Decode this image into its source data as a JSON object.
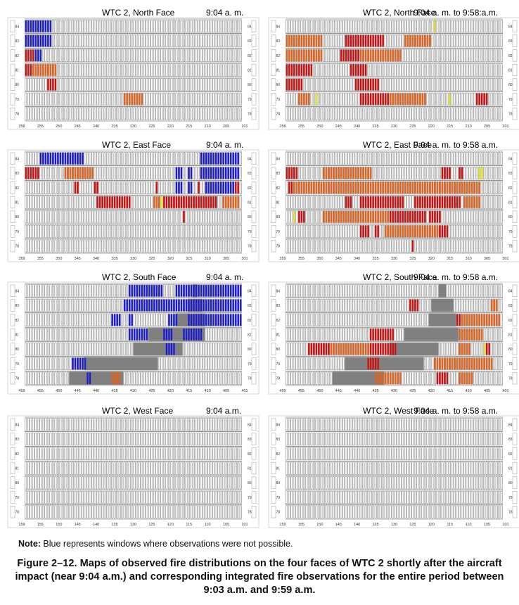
{
  "panels": [
    {
      "id": "north-904",
      "title": "WTC 2, North Face",
      "time": "9:04 a. m.",
      "floors": [
        "84",
        "83",
        "82",
        "81",
        "80",
        "79",
        "78"
      ],
      "columns": [
        "258",
        "255",
        "250",
        "245",
        "240",
        "235",
        "230",
        "225",
        "220",
        "215",
        "210",
        "205",
        "201"
      ],
      "runs": [
        [
          0,
          0,
          11,
          "blue"
        ],
        [
          1,
          0,
          11,
          "blue"
        ],
        [
          2,
          0,
          4,
          "red"
        ],
        [
          2,
          4,
          7,
          "blue"
        ],
        [
          3,
          0,
          3,
          "red"
        ],
        [
          3,
          3,
          13,
          "orange"
        ],
        [
          4,
          9,
          13,
          "red"
        ],
        [
          5,
          40,
          48,
          "orange"
        ]
      ]
    },
    {
      "id": "north-958",
      "title": "WTC 2, North Face",
      "time": "9:04 a. m. to 9:58:a.m.",
      "floors": [
        "84",
        "83",
        "82",
        "81",
        "80",
        "79",
        "78"
      ],
      "columns": [
        "258",
        "255",
        "250",
        "245",
        "240",
        "235",
        "230",
        "225",
        "220",
        "215",
        "210",
        "205",
        "201"
      ],
      "runs": [
        [
          0,
          60,
          61,
          "yellow"
        ],
        [
          1,
          0,
          15,
          "orange"
        ],
        [
          1,
          24,
          40,
          "red"
        ],
        [
          1,
          48,
          59,
          "orange"
        ],
        [
          2,
          0,
          15,
          "orange"
        ],
        [
          2,
          22,
          30,
          "red"
        ],
        [
          2,
          30,
          47,
          "orange"
        ],
        [
          3,
          0,
          11,
          "red"
        ],
        [
          3,
          26,
          33,
          "red"
        ],
        [
          4,
          0,
          7,
          "red"
        ],
        [
          4,
          28,
          38,
          "red"
        ],
        [
          5,
          5,
          10,
          "orange"
        ],
        [
          5,
          12,
          13,
          "yellow"
        ],
        [
          5,
          30,
          42,
          "red"
        ],
        [
          5,
          42,
          57,
          "orange"
        ],
        [
          5,
          66,
          67,
          "yellow"
        ],
        [
          5,
          77,
          82,
          "red"
        ]
      ]
    },
    {
      "id": "east-904",
      "title": "WTC 2, East Face",
      "time": "9:04 a. m.",
      "floors": [
        "84",
        "83",
        "82",
        "81",
        "80",
        "79",
        "78"
      ],
      "columns": [
        "359",
        "355",
        "350",
        "345",
        "340",
        "335",
        "330",
        "325",
        "320",
        "315",
        "310",
        "305",
        "301"
      ],
      "runs": [
        [
          0,
          6,
          24,
          "blue"
        ],
        [
          0,
          71,
          87,
          "blue"
        ],
        [
          1,
          0,
          6,
          "red"
        ],
        [
          1,
          16,
          28,
          "orange"
        ],
        [
          1,
          61,
          64,
          "blue"
        ],
        [
          1,
          66,
          68,
          "blue"
        ],
        [
          1,
          71,
          87,
          "blue"
        ],
        [
          2,
          20,
          22,
          "red"
        ],
        [
          2,
          28,
          30,
          "red"
        ],
        [
          2,
          53,
          54,
          "red"
        ],
        [
          2,
          61,
          64,
          "blue"
        ],
        [
          2,
          66,
          68,
          "blue"
        ],
        [
          2,
          70,
          71,
          "red"
        ],
        [
          2,
          73,
          85,
          "blue"
        ],
        [
          2,
          85,
          87,
          "red"
        ],
        [
          3,
          29,
          43,
          "red"
        ],
        [
          3,
          52,
          55,
          "orange"
        ],
        [
          3,
          55,
          56,
          "yellow"
        ],
        [
          3,
          56,
          67,
          "red"
        ],
        [
          3,
          67,
          78,
          "red"
        ],
        [
          3,
          80,
          87,
          "orange"
        ],
        [
          4,
          64,
          65,
          "red"
        ]
      ]
    },
    {
      "id": "east-958",
      "title": "WTC 2, East Face",
      "time": "9:04 a. m. to 9:58 a.m.",
      "floors": [
        "84",
        "83",
        "82",
        "81",
        "80",
        "79",
        "78"
      ],
      "columns": [
        "359",
        "355",
        "350",
        "345",
        "340",
        "335",
        "330",
        "325",
        "320",
        "315",
        "310",
        "305",
        "301"
      ],
      "runs": [
        [
          1,
          0,
          5,
          "red"
        ],
        [
          1,
          15,
          35,
          "orange"
        ],
        [
          1,
          63,
          67,
          "red"
        ],
        [
          1,
          70,
          72,
          "red"
        ],
        [
          1,
          78,
          80,
          "yellow"
        ],
        [
          2,
          1,
          3,
          "red"
        ],
        [
          2,
          3,
          79,
          "orange"
        ],
        [
          3,
          24,
          27,
          "red"
        ],
        [
          3,
          30,
          48,
          "red"
        ],
        [
          3,
          52,
          71,
          "red"
        ],
        [
          3,
          72,
          79,
          "orange"
        ],
        [
          4,
          3,
          4,
          "yellow"
        ],
        [
          4,
          5,
          8,
          "red"
        ],
        [
          4,
          15,
          42,
          "orange"
        ],
        [
          4,
          42,
          57,
          "red"
        ],
        [
          4,
          58,
          63,
          "red"
        ],
        [
          5,
          30,
          34,
          "red"
        ],
        [
          5,
          36,
          38,
          "red"
        ],
        [
          5,
          40,
          62,
          "orange"
        ],
        [
          5,
          62,
          66,
          "red"
        ],
        [
          6,
          51,
          52,
          "red"
        ]
      ]
    },
    {
      "id": "south-904",
      "title": "WTC 2, South Face",
      "time": "9:04 a. m.",
      "floors": [
        "84",
        "83",
        "82",
        "81",
        "80",
        "79",
        "78"
      ],
      "columns": [
        "459",
        "455",
        "450",
        "445",
        "440",
        "435",
        "430",
        "425",
        "420",
        "415",
        "410",
        "405",
        "401"
      ],
      "runs": [
        [
          0,
          42,
          56,
          "blue"
        ],
        [
          0,
          61,
          88,
          "blue"
        ],
        [
          1,
          40,
          88,
          "blue"
        ],
        [
          2,
          35,
          39,
          "blue"
        ],
        [
          2,
          42,
          44,
          "blue"
        ],
        [
          2,
          58,
          62,
          "blue"
        ],
        [
          2,
          66,
          88,
          "blue"
        ],
        [
          3,
          42,
          50,
          "blue"
        ],
        [
          3,
          56,
          60,
          "blue"
        ],
        [
          3,
          64,
          72,
          "blue"
        ],
        [
          4,
          57,
          61,
          "blue"
        ],
        [
          5,
          19,
          25,
          "blue"
        ],
        [
          6,
          25,
          27,
          "blue"
        ],
        [
          6,
          35,
          39,
          "orange"
        ]
      ],
      "gray": [
        [
          0,
          68,
          70
        ],
        [
          1,
          66,
          72
        ],
        [
          2,
          61,
          73
        ],
        [
          3,
          50,
          73
        ],
        [
          4,
          44,
          64
        ],
        [
          5,
          24,
          54
        ],
        [
          6,
          18,
          40
        ]
      ]
    },
    {
      "id": "south-958",
      "title": "WTC 2, South Face",
      "time": "9:04 a. m. to 9:58 a.m.",
      "floors": [
        "84",
        "83",
        "82",
        "81",
        "80",
        "79",
        "78"
      ],
      "columns": [
        "459",
        "455",
        "450",
        "445",
        "440",
        "435",
        "430",
        "425",
        "420",
        "415",
        "410",
        "405",
        "401"
      ],
      "runs": [
        [
          1,
          50,
          54,
          "red"
        ],
        [
          1,
          83,
          86,
          "orange"
        ],
        [
          2,
          69,
          71,
          "red"
        ],
        [
          2,
          71,
          87,
          "orange"
        ],
        [
          3,
          34,
          44,
          "red"
        ],
        [
          3,
          70,
          80,
          "orange"
        ],
        [
          4,
          9,
          18,
          "red"
        ],
        [
          4,
          18,
          34,
          "orange"
        ],
        [
          4,
          34,
          45,
          "red"
        ],
        [
          4,
          70,
          75,
          "orange"
        ],
        [
          4,
          80,
          81,
          "yellow"
        ],
        [
          4,
          81,
          83,
          "red"
        ],
        [
          5,
          33,
          38,
          "red"
        ],
        [
          5,
          60,
          84,
          "orange"
        ],
        [
          6,
          36,
          47,
          "orange"
        ],
        [
          6,
          61,
          66,
          "red"
        ],
        [
          6,
          70,
          76,
          "orange"
        ]
      ],
      "gray": [
        [
          0,
          62,
          65
        ],
        [
          1,
          59,
          68
        ],
        [
          2,
          58,
          69
        ],
        [
          3,
          48,
          70
        ],
        [
          4,
          42,
          62
        ],
        [
          5,
          24,
          56
        ],
        [
          6,
          19,
          40
        ]
      ]
    },
    {
      "id": "west-904",
      "title": "WTC 2, West Face",
      "time": "9:04 a.m.",
      "floors": [
        "84",
        "83",
        "82",
        "81",
        "80",
        "79",
        "78"
      ],
      "columns": [
        "159",
        "155",
        "150",
        "145",
        "140",
        "135",
        "130",
        "125",
        "120",
        "115",
        "110",
        "105",
        "101"
      ],
      "runs": []
    },
    {
      "id": "west-958",
      "title": "WTC 2, West Face",
      "time": "9:04 a. m. to 9:58 a.m.",
      "floors": [
        "84",
        "83",
        "82",
        "81",
        "80",
        "79",
        "78"
      ],
      "columns": [
        "159",
        "155",
        "150",
        "145",
        "140",
        "135",
        "130",
        "125",
        "120",
        "115",
        "110",
        "105",
        "101"
      ],
      "runs": []
    }
  ],
  "colors": {
    "blue": "#1a1ad0",
    "red": "#cc1010",
    "orange": "#e0641e",
    "yellow": "#e8e820",
    "gray": "#808080",
    "grid": "#8a8a8a"
  },
  "note": {
    "label": "Note:",
    "text": " Blue represents windows where observations were not possible."
  },
  "caption": "Figure 2–12.  Maps of observed fire distributions on the four faces of WTC 2 shortly after the aircraft impact (near 9:04 a.m.) and corresponding integrated fire observations for the entire period between 9:03 a.m. and 9:59 a.m."
}
